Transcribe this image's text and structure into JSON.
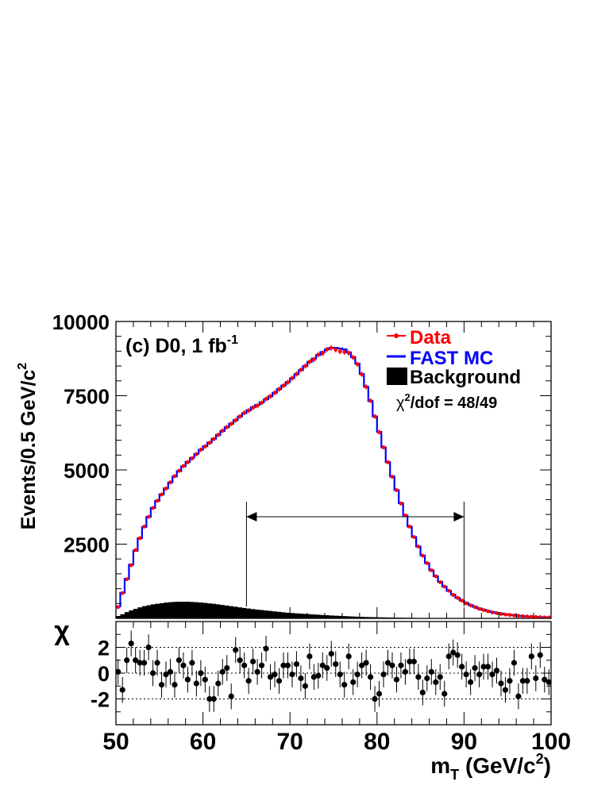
{
  "chart_data": [
    {
      "type": "line",
      "panel": "main",
      "label": "(c) D0, 1 fb",
      "label_superscript": "-1",
      "ylabel": "Events/0.5 GeV/c",
      "ylabel_superscript": "2",
      "xlim": [
        50,
        100
      ],
      "ylim": [
        0,
        10000
      ],
      "ytick_labels": [
        "2500",
        "5000",
        "7500",
        "10000"
      ],
      "grid": false,
      "legend_position": "top-right",
      "legend": [
        {
          "label": "Data",
          "color": "#ff0000",
          "style": "marker"
        },
        {
          "label": "FAST MC",
          "color": "#0000ff",
          "style": "line"
        },
        {
          "label": "Background",
          "color": "#000000",
          "style": "fill"
        }
      ],
      "fit_label": "/dof = 48/49",
      "fit_chi_symbol": "χ",
      "fit_chi_superscript": "2",
      "fit_range": [
        65,
        90
      ],
      "x": [
        50.25,
        50.75,
        51.25,
        51.75,
        52.25,
        52.75,
        53.25,
        53.75,
        54.25,
        54.75,
        55.25,
        55.75,
        56.25,
        56.75,
        57.25,
        57.75,
        58.25,
        58.75,
        59.25,
        59.75,
        60.25,
        60.75,
        61.25,
        61.75,
        62.25,
        62.75,
        63.25,
        63.75,
        64.25,
        64.75,
        65.25,
        65.75,
        66.25,
        66.75,
        67.25,
        67.75,
        68.25,
        68.75,
        69.25,
        69.75,
        70.25,
        70.75,
        71.25,
        71.75,
        72.25,
        72.75,
        73.25,
        73.75,
        74.25,
        74.75,
        75.25,
        75.75,
        76.25,
        76.75,
        77.25,
        77.75,
        78.25,
        78.75,
        79.25,
        79.75,
        80.25,
        80.75,
        81.25,
        81.75,
        82.25,
        82.75,
        83.25,
        83.75,
        84.25,
        84.75,
        85.25,
        85.75,
        86.25,
        86.75,
        87.25,
        87.75,
        88.25,
        88.75,
        89.25,
        89.75,
        90.25,
        90.75,
        91.25,
        91.75,
        92.25,
        92.75,
        93.25,
        93.75,
        94.25,
        94.75,
        95.25,
        95.75,
        96.25,
        96.75,
        97.25,
        97.75,
        98.25,
        98.75,
        99.25,
        99.75
      ],
      "series": [
        {
          "name": "Data",
          "color": "#ff0000",
          "values": [
            380,
            850,
            1320,
            1790,
            2300,
            2700,
            3090,
            3420,
            3720,
            3960,
            4170,
            4370,
            4580,
            4790,
            4970,
            5130,
            5260,
            5390,
            5530,
            5680,
            5790,
            5910,
            6040,
            6180,
            6320,
            6440,
            6550,
            6670,
            6800,
            6920,
            7000,
            7100,
            7160,
            7260,
            7390,
            7480,
            7600,
            7720,
            7840,
            7950,
            8090,
            8230,
            8370,
            8500,
            8640,
            8720,
            8880,
            8930,
            9060,
            9110,
            9050,
            8990,
            8970,
            8940,
            8790,
            8560,
            8220,
            7800,
            7330,
            6800,
            6270,
            5760,
            5260,
            4770,
            4320,
            3870,
            3470,
            3090,
            2740,
            2420,
            2110,
            1860,
            1620,
            1420,
            1220,
            1070,
            930,
            790,
            690,
            600,
            510,
            440,
            380,
            320,
            280,
            240,
            200,
            175,
            150,
            130,
            115,
            100,
            85,
            72,
            62,
            53,
            45,
            39,
            33,
            28
          ]
        },
        {
          "name": "FAST MC",
          "color": "#0000ff",
          "values": [
            400,
            860,
            1330,
            1810,
            2280,
            2700,
            3080,
            3420,
            3720,
            3960,
            4180,
            4380,
            4580,
            4780,
            4960,
            5120,
            5270,
            5410,
            5540,
            5680,
            5800,
            5920,
            6050,
            6180,
            6310,
            6440,
            6560,
            6680,
            6800,
            6910,
            7010,
            7110,
            7190,
            7280,
            7380,
            7480,
            7600,
            7720,
            7840,
            7960,
            8090,
            8220,
            8360,
            8500,
            8640,
            8750,
            8870,
            8970,
            9060,
            9110,
            9110,
            9090,
            9060,
            8960,
            8800,
            8580,
            8230,
            7800,
            7320,
            6800,
            6280,
            5760,
            5260,
            4780,
            4320,
            3880,
            3470,
            3090,
            2740,
            2420,
            2120,
            1860,
            1620,
            1420,
            1230,
            1070,
            930,
            800,
            690,
            600,
            520,
            450,
            390,
            335,
            290,
            250,
            215,
            185,
            160,
            137,
            118,
            101,
            87,
            74,
            63,
            54,
            46,
            39,
            33,
            28
          ]
        },
        {
          "name": "Background",
          "color": "#000000",
          "fill": true,
          "values": [
            80,
            140,
            210,
            270,
            320,
            370,
            410,
            440,
            470,
            490,
            510,
            530,
            545,
            555,
            560,
            560,
            560,
            555,
            545,
            535,
            520,
            505,
            490,
            470,
            450,
            430,
            410,
            390,
            370,
            350,
            330,
            310,
            295,
            280,
            265,
            250,
            235,
            220,
            205,
            190,
            180,
            170,
            160,
            150,
            140,
            130,
            122,
            114,
            106,
            98,
            90,
            83,
            76,
            70,
            64,
            58,
            53,
            48,
            44,
            40,
            36,
            33,
            30,
            27,
            25,
            23,
            21,
            19,
            17,
            15,
            14,
            13,
            12,
            11,
            10,
            9,
            8,
            7,
            6,
            6,
            5,
            5,
            4,
            4,
            3,
            3,
            3,
            2,
            2,
            2,
            2,
            2,
            1,
            1,
            1,
            1,
            1,
            1,
            1,
            1
          ]
        }
      ]
    },
    {
      "type": "scatter",
      "panel": "residual",
      "ylabel": "χ",
      "xlabel": "m",
      "xlabel_subscript": "T",
      "xlabel_unit": " (GeV/c",
      "xlabel_unit_superscript": "2",
      "xlabel_unit_close": ")",
      "xlim": [
        50,
        100
      ],
      "ylim": [
        -4,
        4
      ],
      "xtick_labels": [
        "50",
        "60",
        "70",
        "80",
        "90",
        "100"
      ],
      "ytick_labels": [
        "2",
        "0",
        "-2"
      ],
      "reference_lines": [
        2,
        0,
        -2
      ],
      "x": [
        50.25,
        50.75,
        51.25,
        51.75,
        52.25,
        52.75,
        53.25,
        53.75,
        54.25,
        54.75,
        55.25,
        55.75,
        56.25,
        56.75,
        57.25,
        57.75,
        58.25,
        58.75,
        59.25,
        59.75,
        60.25,
        60.75,
        61.25,
        61.75,
        62.25,
        62.75,
        63.25,
        63.75,
        64.25,
        64.75,
        65.25,
        65.75,
        66.25,
        66.75,
        67.25,
        67.75,
        68.25,
        68.75,
        69.25,
        69.75,
        70.25,
        70.75,
        71.25,
        71.75,
        72.25,
        72.75,
        73.25,
        73.75,
        74.25,
        74.75,
        75.25,
        75.75,
        76.25,
        76.75,
        77.25,
        77.75,
        78.25,
        78.75,
        79.25,
        79.75,
        80.25,
        80.75,
        81.25,
        81.75,
        82.25,
        82.75,
        83.25,
        83.75,
        84.25,
        84.75,
        85.25,
        85.75,
        86.25,
        86.75,
        87.25,
        87.75,
        88.25,
        88.75,
        89.25,
        89.75,
        90.25,
        90.75,
        91.25,
        91.75,
        92.25,
        92.75,
        93.25,
        93.75,
        94.25,
        94.75,
        95.25,
        95.75,
        96.25,
        96.75,
        97.25,
        97.75,
        98.25,
        98.75,
        99.25,
        99.75
      ],
      "values": [
        0.1,
        -1.3,
        1.0,
        2.3,
        1.0,
        0.8,
        0.8,
        2.0,
        0.0,
        0.8,
        -0.9,
        -0.1,
        0.1,
        -0.9,
        1.0,
        0.6,
        -0.5,
        0.8,
        -0.8,
        0.0,
        -0.5,
        -2.0,
        -2.0,
        -0.8,
        0.1,
        0.4,
        -1.8,
        1.8,
        1.0,
        0.6,
        -0.6,
        0.9,
        0.1,
        0.6,
        1.9,
        -0.3,
        -0.1,
        -0.6,
        0.6,
        0.6,
        -0.1,
        0.7,
        -0.4,
        -1.0,
        1.3,
        -0.3,
        -0.2,
        0.6,
        0.4,
        1.5,
        0.7,
        -0.1,
        -0.9,
        1.3,
        -0.7,
        -0.1,
        0.6,
        0.8,
        -0.3,
        -2.0,
        -1.6,
        -0.1,
        0.8,
        0.6,
        -0.5,
        0.6,
        0.1,
        0.9,
        0.9,
        -0.3,
        -1.5,
        -0.4,
        0.1,
        -0.7,
        -0.3,
        -1.6,
        1.3,
        1.6,
        1.4,
        0.5,
        -0.1,
        -0.7,
        0.4,
        -0.1,
        0.5,
        0.5,
        -0.1,
        0.2,
        -0.8,
        -1.3,
        -0.6,
        0.8,
        -1.8,
        -0.6,
        -0.6,
        1.3,
        -0.4,
        1.4,
        -0.5,
        -0.7
      ]
    }
  ]
}
